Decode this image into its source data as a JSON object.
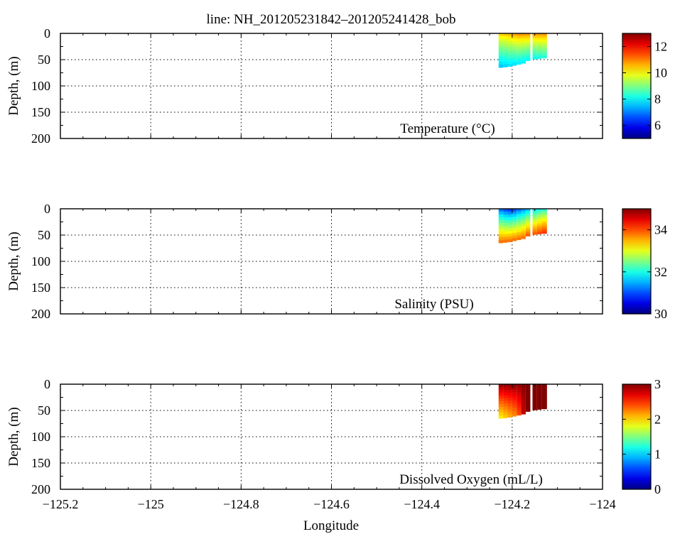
{
  "chart_data": {
    "title": "line: NH_201205231842–201205241428_bob",
    "xlabel": "Longitude",
    "ylabel": "Depth, (m)",
    "xlim": [
      -125.2,
      -124.0
    ],
    "ylim": [
      200,
      0
    ],
    "x_ticks": [
      "−125.2",
      "−125",
      "−124.8",
      "−124.6",
      "−124.4",
      "−124.2",
      "−124"
    ],
    "x_tick_values": [
      -125.2,
      -125.0,
      -124.8,
      -124.6,
      -124.4,
      -124.2,
      -124.0
    ],
    "y_ticks": [
      "0",
      "50",
      "100",
      "150",
      "200"
    ],
    "y_tick_values": [
      0,
      50,
      100,
      150,
      200
    ],
    "grid": true,
    "colormap": "jet",
    "panels": [
      {
        "type": "heatmap",
        "label": "Temperature (°C)",
        "colorbar": {
          "range": [
            5,
            13
          ],
          "ticks": [
            6,
            8,
            10,
            12
          ],
          "tick_labels": [
            "6",
            "8",
            "10",
            "12"
          ]
        },
        "profiles": [
          {
            "lon": -124.23,
            "max_depth": 65,
            "surface": 10.5,
            "bottom": 7.5
          },
          {
            "lon": -124.22,
            "max_depth": 64,
            "surface": 10.6,
            "bottom": 7.6
          },
          {
            "lon": -124.21,
            "max_depth": 63,
            "surface": 10.7,
            "bottom": 7.7
          },
          {
            "lon": -124.2,
            "max_depth": 61,
            "surface": 10.9,
            "bottom": 7.7
          },
          {
            "lon": -124.19,
            "max_depth": 59,
            "surface": 11.0,
            "bottom": 7.8
          },
          {
            "lon": -124.18,
            "max_depth": 57,
            "surface": 11.0,
            "bottom": 7.8
          },
          {
            "lon": -124.17,
            "max_depth": 52,
            "surface": 11.0,
            "bottom": 7.9
          },
          {
            "lon": -124.155,
            "max_depth": 49,
            "surface": 11.0,
            "bottom": 8.0
          },
          {
            "lon": -124.145,
            "max_depth": 48,
            "surface": 11.0,
            "bottom": 8.1
          },
          {
            "lon": -124.135,
            "max_depth": 47,
            "surface": 11.0,
            "bottom": 8.2
          }
        ]
      },
      {
        "type": "heatmap",
        "label": "Salinity (PSU)",
        "colorbar": {
          "range": [
            30,
            35
          ],
          "ticks": [
            30,
            32,
            34
          ],
          "tick_labels": [
            "30",
            "32",
            "34"
          ]
        },
        "profiles": [
          {
            "lon": -124.23,
            "max_depth": 65,
            "surface": 31.0,
            "bottom": 33.9
          },
          {
            "lon": -124.22,
            "max_depth": 64,
            "surface": 30.8,
            "bottom": 33.9
          },
          {
            "lon": -124.21,
            "max_depth": 63,
            "surface": 30.7,
            "bottom": 33.9
          },
          {
            "lon": -124.2,
            "max_depth": 61,
            "surface": 30.8,
            "bottom": 33.9
          },
          {
            "lon": -124.19,
            "max_depth": 59,
            "surface": 31.0,
            "bottom": 33.9
          },
          {
            "lon": -124.18,
            "max_depth": 57,
            "surface": 31.2,
            "bottom": 33.9
          },
          {
            "lon": -124.17,
            "max_depth": 52,
            "surface": 31.4,
            "bottom": 34.0
          },
          {
            "lon": -124.155,
            "max_depth": 49,
            "surface": 31.6,
            "bottom": 34.0
          },
          {
            "lon": -124.145,
            "max_depth": 48,
            "surface": 31.8,
            "bottom": 34.1
          },
          {
            "lon": -124.135,
            "max_depth": 47,
            "surface": 31.9,
            "bottom": 34.2
          }
        ]
      },
      {
        "type": "heatmap",
        "label": "Dissolved Oxygen (mL/L)",
        "colorbar": {
          "range": [
            0,
            3
          ],
          "ticks": [
            0,
            1,
            2,
            3
          ],
          "tick_labels": [
            "0",
            "1",
            "2",
            "3"
          ]
        },
        "profiles": [
          {
            "lon": -124.23,
            "max_depth": 65,
            "surface": 3.0,
            "bottom": 1.9
          },
          {
            "lon": -124.22,
            "max_depth": 64,
            "surface": 3.0,
            "bottom": 2.0
          },
          {
            "lon": -124.21,
            "max_depth": 63,
            "surface": 3.0,
            "bottom": 2.1
          },
          {
            "lon": -124.2,
            "max_depth": 61,
            "surface": 3.0,
            "bottom": 2.2
          },
          {
            "lon": -124.19,
            "max_depth": 59,
            "surface": 3.0,
            "bottom": 2.4
          },
          {
            "lon": -124.18,
            "max_depth": 57,
            "surface": 3.0,
            "bottom": 2.8
          },
          {
            "lon": -124.17,
            "max_depth": 52,
            "surface": 3.0,
            "bottom": 3.0
          },
          {
            "lon": -124.155,
            "max_depth": 49,
            "surface": 3.0,
            "bottom": 3.0
          },
          {
            "lon": -124.145,
            "max_depth": 48,
            "surface": 3.0,
            "bottom": 3.0
          },
          {
            "lon": -124.135,
            "max_depth": 47,
            "surface": 3.0,
            "bottom": 3.0
          }
        ]
      }
    ]
  }
}
